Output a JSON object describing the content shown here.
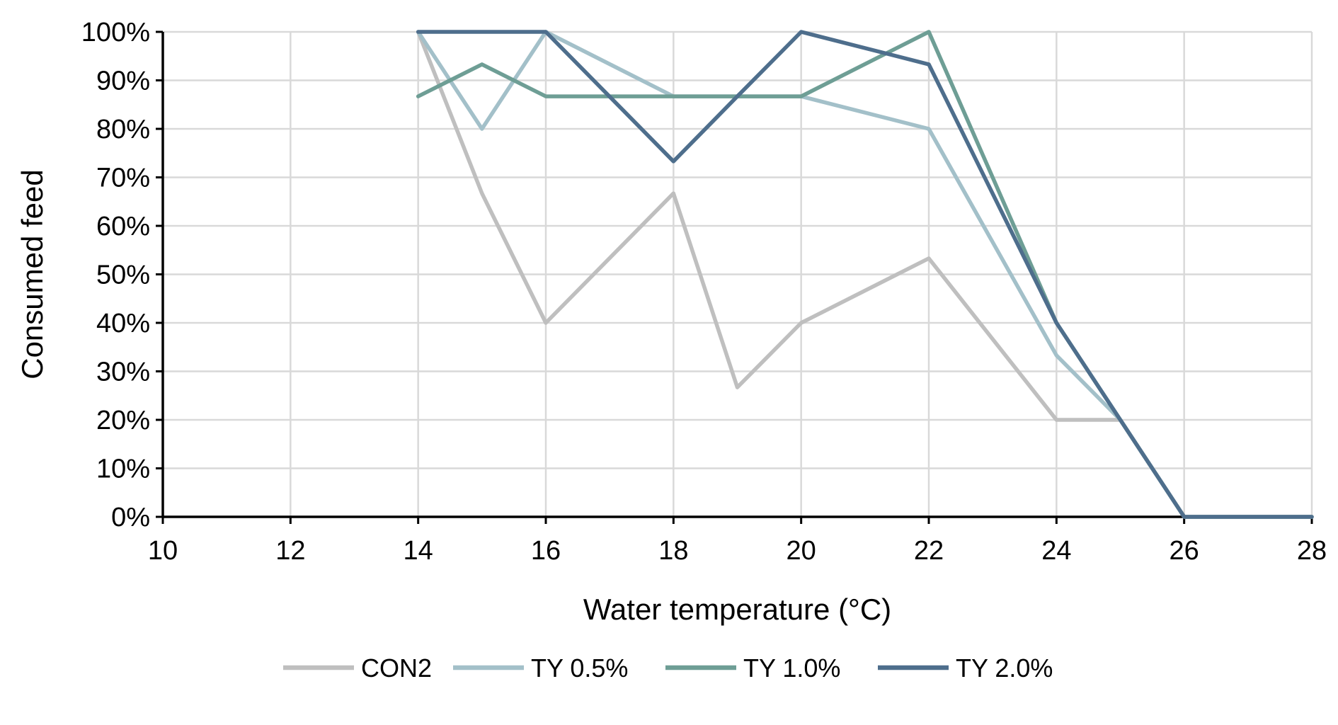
{
  "chart_data": {
    "type": "line",
    "title": "",
    "xlabel": "Water temperature (°C)",
    "ylabel": "Consumed feed",
    "xlim": [
      10,
      28
    ],
    "ylim": [
      0,
      100
    ],
    "x_ticks": [
      10,
      12,
      14,
      16,
      18,
      20,
      22,
      24,
      26,
      28
    ],
    "x_tick_labels": [
      "10",
      "12",
      "14",
      "16",
      "18",
      "20",
      "22",
      "24",
      "26",
      "28"
    ],
    "y_ticks": [
      0,
      10,
      20,
      30,
      40,
      50,
      60,
      70,
      80,
      90,
      100
    ],
    "y_tick_labels": [
      "0%",
      "10%",
      "20%",
      "30%",
      "40%",
      "50%",
      "60%",
      "70%",
      "80%",
      "90%",
      "100%"
    ],
    "grid": true,
    "legend_position": "bottom",
    "series": [
      {
        "name": "CON2",
        "color": "#bfbfbf",
        "x": [
          14,
          15,
          16,
          18,
          19,
          20,
          22,
          24,
          25,
          26,
          28
        ],
        "values": [
          100,
          66.7,
          40,
          66.7,
          26.7,
          40,
          53.3,
          20,
          20,
          0,
          0
        ]
      },
      {
        "name": "TY 0.5%",
        "color": "#a3c0c9",
        "x": [
          14,
          15,
          16,
          18,
          20,
          22,
          24,
          25,
          26,
          28
        ],
        "values": [
          100,
          80,
          100,
          86.7,
          86.7,
          80,
          33.3,
          20,
          0,
          0
        ]
      },
      {
        "name": "TY 1.0%",
        "color": "#6e9e95",
        "x": [
          14,
          15,
          16,
          18,
          20,
          22,
          24,
          25,
          26,
          28
        ],
        "values": [
          86.7,
          93.3,
          86.7,
          86.7,
          86.7,
          100,
          40,
          20,
          0,
          0
        ]
      },
      {
        "name": "TY 2.0%",
        "color": "#4e6e8c",
        "x": [
          14,
          16,
          18,
          19,
          20,
          22,
          24,
          25,
          26,
          28
        ],
        "values": [
          100,
          100,
          73.3,
          86.7,
          100,
          93.3,
          40,
          20,
          0,
          0
        ]
      }
    ]
  }
}
